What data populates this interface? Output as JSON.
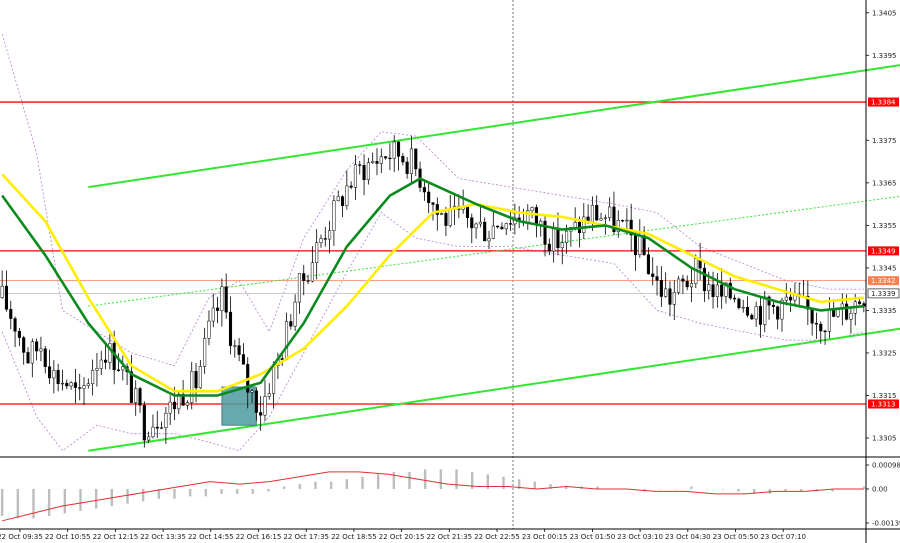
{
  "chart_data": {
    "type": "candlestick",
    "price_ticks": [
      "1.3405",
      "1.3395",
      "1.3375",
      "1.3365",
      "1.3355",
      "1.3345",
      "1.3335",
      "1.3325",
      "1.3315",
      "1.3305"
    ],
    "price_range": [
      1.3301,
      1.3408
    ],
    "time_ticks": [
      "22 Oct 09:35",
      "22 Oct 10:55",
      "22 Oct 12:15",
      "22 Oct 13:35",
      "22 Oct 14:55",
      "22 Oct 16:15",
      "22 Oct 17:35",
      "22 Oct 18:55",
      "22 Oct 20:15",
      "22 Oct 21:35",
      "22 Oct 22:55",
      "23 Oct 00:15",
      "23 Oct 01:50",
      "23 Oct 03:10",
      "23 Oct 04:30",
      "23 Oct 05:50",
      "23 Oct 07:10"
    ],
    "levels": [
      {
        "value": 1.3384,
        "label": "1.3384",
        "color": "#ff0000"
      },
      {
        "value": 1.3349,
        "label": "1.3349",
        "color": "#ff0000"
      },
      {
        "value": 1.3313,
        "label": "1.3313",
        "color": "#ff0000"
      }
    ],
    "level_ask": {
      "value": 1.3342,
      "label": "1.3342",
      "color": "#ff7f50"
    },
    "current_price": {
      "value": 1.3339,
      "label": "1.3339"
    },
    "close_path": [
      [
        0,
        1.3338
      ],
      [
        3,
        1.3332
      ],
      [
        6,
        1.3324
      ],
      [
        9,
        1.3327
      ],
      [
        12,
        1.332
      ],
      [
        15,
        1.3318
      ],
      [
        18,
        1.3314
      ],
      [
        21,
        1.3322
      ],
      [
        24,
        1.3326
      ],
      [
        27,
        1.3323
      ],
      [
        30,
        1.3316
      ],
      [
        33,
        1.3308
      ],
      [
        36,
        1.331
      ],
      [
        39,
        1.3312
      ],
      [
        42,
        1.3316
      ],
      [
        45,
        1.3318
      ],
      [
        48,
        1.333
      ],
      [
        51,
        1.3338
      ],
      [
        54,
        1.3326
      ],
      [
        57,
        1.3317
      ],
      [
        60,
        1.3312
      ],
      [
        62,
        1.3318
      ],
      [
        65,
        1.3326
      ],
      [
        68,
        1.3338
      ],
      [
        71,
        1.3345
      ],
      [
        74,
        1.3352
      ],
      [
        77,
        1.3358
      ],
      [
        80,
        1.3364
      ],
      [
        83,
        1.3368
      ],
      [
        86,
        1.337
      ],
      [
        89,
        1.3372
      ],
      [
        92,
        1.3372
      ],
      [
        95,
        1.337
      ],
      [
        98,
        1.3365
      ],
      [
        101,
        1.3358
      ],
      [
        104,
        1.3356
      ],
      [
        107,
        1.3357
      ],
      [
        110,
        1.3355
      ],
      [
        113,
        1.3354
      ],
      [
        116,
        1.3357
      ],
      [
        119,
        1.3357
      ],
      [
        122,
        1.3358
      ],
      [
        125,
        1.3355
      ],
      [
        128,
        1.3351
      ],
      [
        131,
        1.3352
      ],
      [
        134,
        1.3355
      ],
      [
        137,
        1.3358
      ],
      [
        140,
        1.3357
      ],
      [
        143,
        1.3355
      ],
      [
        146,
        1.3352
      ],
      [
        149,
        1.3348
      ],
      [
        152,
        1.3341
      ],
      [
        155,
        1.3338
      ],
      [
        158,
        1.3341
      ],
      [
        161,
        1.3344
      ],
      [
        164,
        1.3341
      ],
      [
        167,
        1.3338
      ],
      [
        170,
        1.3339
      ],
      [
        173,
        1.3337
      ],
      [
        176,
        1.3335
      ],
      [
        179,
        1.3336
      ],
      [
        182,
        1.3337
      ],
      [
        185,
        1.3336
      ],
      [
        188,
        1.3334
      ],
      [
        191,
        1.3333
      ],
      [
        194,
        1.3334
      ],
      [
        197,
        1.3336
      ],
      [
        200,
        1.3339
      ]
    ],
    "sma_fast": [
      [
        0,
        1.3362
      ],
      [
        10,
        1.3348
      ],
      [
        20,
        1.3332
      ],
      [
        30,
        1.332
      ],
      [
        40,
        1.3315
      ],
      [
        50,
        1.3315
      ],
      [
        60,
        1.3318
      ],
      [
        70,
        1.3332
      ],
      [
        80,
        1.335
      ],
      [
        90,
        1.3362
      ],
      [
        97,
        1.3366
      ],
      [
        110,
        1.336
      ],
      [
        120,
        1.3356
      ],
      [
        130,
        1.3354
      ],
      [
        140,
        1.3355
      ],
      [
        150,
        1.3352
      ],
      [
        160,
        1.3345
      ],
      [
        170,
        1.334
      ],
      [
        180,
        1.3337
      ],
      [
        190,
        1.3335
      ],
      [
        200,
        1.3336
      ]
    ],
    "sma_slow": [
      [
        0,
        1.3367
      ],
      [
        10,
        1.3356
      ],
      [
        20,
        1.3338
      ],
      [
        30,
        1.3322
      ],
      [
        40,
        1.3316
      ],
      [
        50,
        1.3316
      ],
      [
        60,
        1.332
      ],
      [
        70,
        1.3326
      ],
      [
        80,
        1.3336
      ],
      [
        90,
        1.3348
      ],
      [
        100,
        1.3358
      ],
      [
        110,
        1.336
      ],
      [
        120,
        1.3358
      ],
      [
        130,
        1.3357
      ],
      [
        140,
        1.3355
      ],
      [
        150,
        1.3353
      ],
      [
        160,
        1.3348
      ],
      [
        170,
        1.3343
      ],
      [
        180,
        1.334
      ],
      [
        190,
        1.3337
      ],
      [
        200,
        1.3338
      ]
    ],
    "channel_upper": [
      [
        20,
        1.3364
      ],
      [
        217,
        1.3394
      ]
    ],
    "channel_lower": [
      [
        20,
        1.3302
      ],
      [
        217,
        1.3332
      ]
    ],
    "channel_mid": [
      [
        20,
        1.3336
      ],
      [
        217,
        1.3363
      ]
    ],
    "envelope_upper": [
      [
        0,
        1.34
      ],
      [
        8,
        1.3372
      ],
      [
        14,
        1.3335
      ],
      [
        22,
        1.333
      ],
      [
        30,
        1.3325
      ],
      [
        40,
        1.3322
      ],
      [
        48,
        1.3338
      ],
      [
        55,
        1.3342
      ],
      [
        62,
        1.333
      ],
      [
        70,
        1.3352
      ],
      [
        80,
        1.3368
      ],
      [
        88,
        1.3377
      ],
      [
        96,
        1.3376
      ],
      [
        106,
        1.3366
      ],
      [
        118,
        1.3364
      ],
      [
        130,
        1.3362
      ],
      [
        142,
        1.336
      ],
      [
        152,
        1.3358
      ],
      [
        162,
        1.335
      ],
      [
        172,
        1.3346
      ],
      [
        182,
        1.3342
      ],
      [
        192,
        1.334
      ],
      [
        200,
        1.334
      ]
    ],
    "envelope_lower": [
      [
        0,
        1.333
      ],
      [
        8,
        1.331
      ],
      [
        14,
        1.3302
      ],
      [
        22,
        1.3308
      ],
      [
        30,
        1.3306
      ],
      [
        40,
        1.3306
      ],
      [
        48,
        1.3304
      ],
      [
        55,
        1.3302
      ],
      [
        62,
        1.331
      ],
      [
        70,
        1.3325
      ],
      [
        80,
        1.3344
      ],
      [
        88,
        1.3358
      ],
      [
        96,
        1.3352
      ],
      [
        106,
        1.335
      ],
      [
        118,
        1.335
      ],
      [
        130,
        1.3348
      ],
      [
        142,
        1.3346
      ],
      [
        152,
        1.3335
      ],
      [
        162,
        1.3332
      ],
      [
        172,
        1.333
      ],
      [
        182,
        1.3328
      ],
      [
        192,
        1.3328
      ],
      [
        200,
        1.333
      ]
    ],
    "signal_box": {
      "x_start": 51,
      "x_end": 59,
      "top": 1.3317,
      "bottom": 1.3308
    },
    "oscillator": {
      "ticks": [
        "0.00098",
        "0.00",
        "-0.00139"
      ],
      "range": [
        -0.00139,
        0.00098
      ],
      "histogram": [
        -0.0011,
        -0.0012,
        -0.0012,
        -0.0011,
        -0.001,
        -0.0009,
        -0.0008,
        -0.0007,
        -0.0006,
        -0.0005,
        -0.0004,
        -0.0004,
        -0.0003,
        -0.0003,
        -0.0002,
        -0.0002,
        -0.0002,
        -0.0001,
        0.0001,
        0.0002,
        0.0003,
        0.0003,
        0.0004,
        0.0005,
        0.0006,
        0.0007,
        0.0007,
        0.0008,
        0.0008,
        0.0008,
        0.0007,
        0.0006,
        0.0005,
        0.0004,
        0.0003,
        0.0002,
        0.0001,
        0.0001,
        0.0001,
        0.0,
        0.0,
        -0.0001,
        0.0,
        0.0,
        0.0001,
        0.0,
        0.0,
        -0.0001,
        -0.0002,
        -0.0002,
        -0.0001,
        -0.0001,
        -0.0001,
        -0.0001,
        0.0,
        0.0001
      ],
      "signal": [
        -0.0013,
        -0.001,
        -0.0007,
        -0.0005,
        -0.0003,
        -0.0001,
        0.0001,
        0.0003,
        0.0002,
        0.0003,
        0.0005,
        0.0007,
        0.0007,
        0.0006,
        0.0004,
        0.0002,
        0.0001,
        0.0001,
        0.0,
        0.0001,
        0.0,
        0.0,
        -0.0001,
        -0.0001,
        -0.0002,
        -0.0002,
        -0.0001,
        -0.0001,
        0.0,
        0.0
      ]
    }
  }
}
